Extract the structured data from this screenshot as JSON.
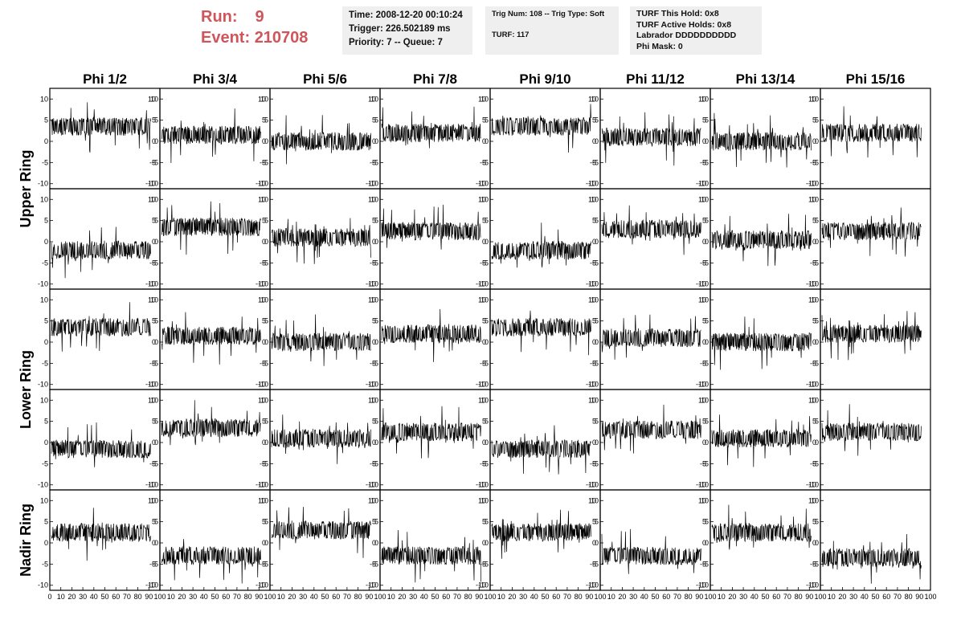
{
  "header": {
    "run_label": "Run:",
    "run_value": "9",
    "event_label": "Event:",
    "event_value": "210708"
  },
  "info_time": {
    "time": "Time: 2008-12-20 00:10:24",
    "trigger": "Trigger: 226.502189 ms",
    "priority": "Priority: 7 -- Queue: 7"
  },
  "info_trig": {
    "trig": "Trig Num: 108 -- Trig Type: Soft",
    "turf": "TURF: 117"
  },
  "info_turf": {
    "hold": "TURF This Hold: 0x8",
    "active": "TURF Active Holds: 0x8",
    "labrador": "Labrador DDDDDDDDDD",
    "phimask": "Phi Mask: 0"
  },
  "chart_data": {
    "type": "line",
    "title": "",
    "columns": [
      "Phi 1/2",
      "Phi 3/4",
      "Phi 5/6",
      "Phi 7/8",
      "Phi 9/10",
      "Phi 11/12",
      "Phi 13/14",
      "Phi 15/16"
    ],
    "row_labels": [
      "Upper Ring",
      "Lower Ring",
      "Nadir Ring"
    ],
    "panel_rows": 5,
    "xlim": [
      0,
      100
    ],
    "ylim": [
      -11,
      11
    ],
    "x_ticks": [
      "0",
      "10",
      "20",
      "30",
      "40",
      "50",
      "60",
      "70",
      "80",
      "90",
      "100"
    ],
    "y_ticks": [
      "10",
      "5",
      "0",
      "-5",
      "-10"
    ],
    "baseline_levels": [
      [
        3.5,
        1.5,
        0,
        2,
        3.5,
        1,
        0,
        2
      ],
      [
        -2,
        3.5,
        1,
        2.5,
        -2,
        3,
        0.5,
        2.5
      ],
      [
        3.5,
        1.5,
        0,
        2,
        3.5,
        1,
        0,
        2
      ],
      [
        -1.5,
        3.5,
        1,
        2.5,
        -1.5,
        3,
        1,
        2.5
      ],
      [
        2.5,
        -3,
        3,
        -3,
        2.5,
        -3,
        2.5,
        -3.5
      ]
    ],
    "colors": {
      "trace": "#000000",
      "frame": "#000000"
    }
  }
}
